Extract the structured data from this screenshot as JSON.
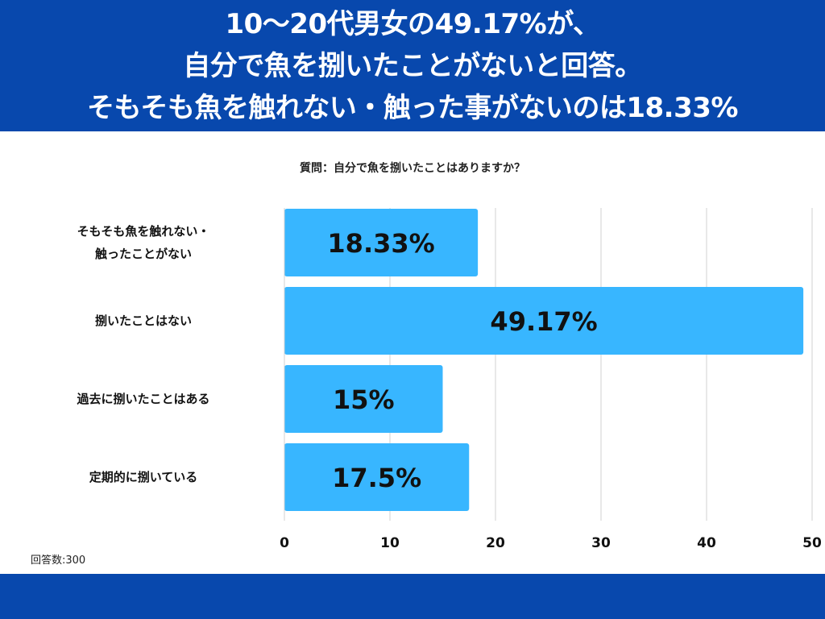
{
  "header": {
    "title": "10〜20代男女の49.17%が、\n自分で魚を捌いたことがないと回答。\nそもそも魚を触れない・触った事がないのは18.33%"
  },
  "question": "質問：自分で魚を捌いたことはありますか？",
  "note": "回答数:300",
  "colors": {
    "header": "#0848ad",
    "bar": "#38b6ff",
    "grid": "#d0d0d0"
  },
  "chart_data": {
    "type": "bar",
    "orientation": "horizontal",
    "categories": [
      "そもそも魚を触れない・\n触ったことがない",
      "捌いたことはない",
      "過去に捌いたことはある",
      "定期的に捌いている"
    ],
    "values": [
      18.33,
      49.17,
      15,
      17.5
    ],
    "data_labels": [
      "18.33%",
      "49.17%",
      "15%",
      "17.5%"
    ],
    "xlim": [
      0,
      50
    ],
    "xticks": [
      "0",
      "10",
      "20",
      "30",
      "40",
      "50"
    ],
    "grid": true
  }
}
